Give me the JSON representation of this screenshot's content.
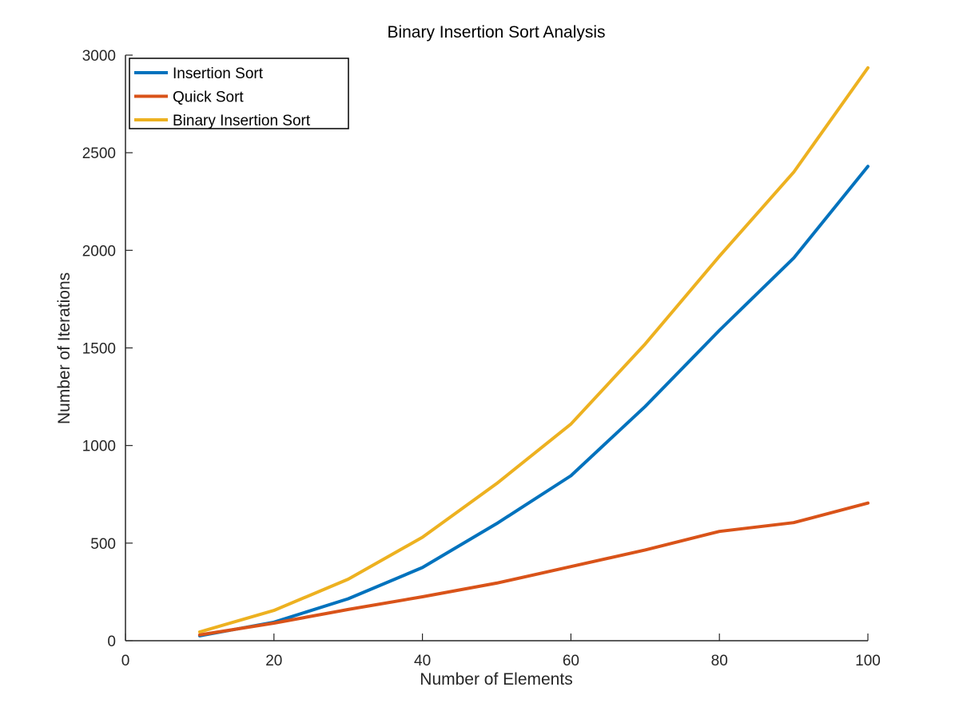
{
  "chart_data": {
    "type": "line",
    "title": "Binary Insertion Sort Analysis",
    "xlabel": "Number of Elements",
    "ylabel": "Number of Iterations",
    "xlim": [
      0,
      100
    ],
    "ylim": [
      0,
      3000
    ],
    "xticks": [
      0,
      20,
      40,
      60,
      80,
      100
    ],
    "yticks": [
      0,
      500,
      1000,
      1500,
      2000,
      2500,
      3000
    ],
    "grid": false,
    "legend_position": "top-left",
    "x": [
      10,
      20,
      30,
      40,
      50,
      60,
      70,
      80,
      90,
      100
    ],
    "series": [
      {
        "name": "Insertion Sort",
        "color": "#0072BD",
        "values": [
          25,
          95,
          215,
          375,
          600,
          845,
          1200,
          1590,
          1960,
          2430
        ]
      },
      {
        "name": "Quick Sort",
        "color": "#D95319",
        "values": [
          30,
          90,
          160,
          225,
          295,
          380,
          465,
          560,
          605,
          705
        ]
      },
      {
        "name": "Binary Insertion Sort",
        "color": "#EDB120",
        "values": [
          45,
          155,
          315,
          530,
          805,
          1110,
          1520,
          1970,
          2400,
          2935
        ]
      }
    ]
  }
}
